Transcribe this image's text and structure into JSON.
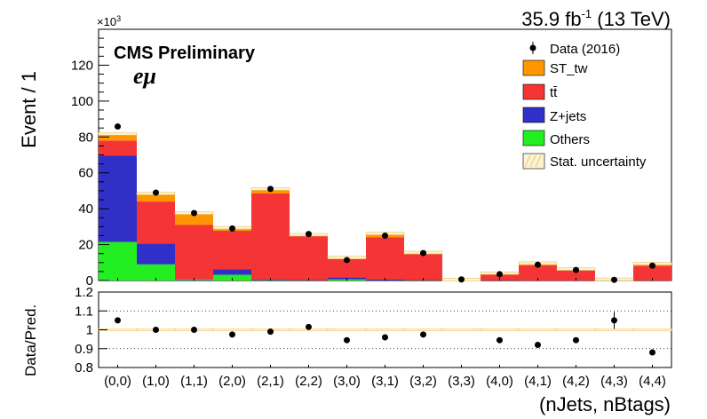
{
  "chart_data": {
    "type": "bar",
    "stacked": true,
    "header": {
      "lumi": "35.9 fb",
      "lumi_exp": "-1",
      "energy": " (13 TeV)",
      "experiment": "CMS Preliminary",
      "channel": "eμ"
    },
    "ylabel": "Event / 1",
    "xlabel": "(nJets, nBtags)",
    "y_multiplier": "×10",
    "y_multiplier_exp": "3",
    "ylim": [
      0,
      140
    ],
    "yticks": [
      0,
      20,
      40,
      60,
      80,
      100,
      120
    ],
    "categories": [
      "(0,0)",
      "(1,0)",
      "(1,1)",
      "(2,0)",
      "(2,1)",
      "(2,2)",
      "(3,0)",
      "(3,1)",
      "(3,2)",
      "(3,3)",
      "(4,0)",
      "(4,1)",
      "(4,2)",
      "(4,3)",
      "(4,4)"
    ],
    "series": [
      {
        "name": "Others",
        "color": "#22ee22",
        "values": [
          21.5,
          9,
          0.3,
          3.2,
          0.2,
          0.1,
          0.6,
          0.1,
          0.1,
          0,
          0,
          0,
          0,
          0,
          0
        ]
      },
      {
        "name": "Z+jets",
        "color": "#3030c8",
        "values": [
          48,
          11.5,
          0.3,
          3,
          0.3,
          0.1,
          1.2,
          0.4,
          0.1,
          0,
          0.1,
          0,
          0,
          0,
          0
        ]
      },
      {
        "name": "tt̄",
        "color": "#f53535",
        "values": [
          8.5,
          23.5,
          30.5,
          21.5,
          48,
          24.5,
          10.3,
          23.5,
          14.5,
          0.5,
          3.5,
          8.5,
          5.7,
          0.6,
          8.2
        ]
      },
      {
        "name": "ST_tw",
        "color": "#ff9600",
        "values": [
          3.8,
          4.5,
          6.5,
          1.7,
          2.5,
          0.8,
          0.7,
          2.2,
          0.9,
          0.1,
          0.5,
          1.2,
          0.7,
          0.1,
          1.2
        ]
      }
    ],
    "data": {
      "name": "Data (2016)",
      "values": [
        85.8,
        49,
        37.6,
        29,
        51,
        25.9,
        11.4,
        25,
        15.3,
        0.6,
        3.5,
        8.8,
        5.9,
        0.4,
        8.3
      ]
    },
    "uncertainty_name": "Stat. uncertainty",
    "legend_position": "top-right",
    "ratio": {
      "ylabel": "Data/Pred.",
      "ylim": [
        0.8,
        1.2
      ],
      "yticks": [
        0.8,
        0.9,
        1,
        1.1,
        1.2
      ],
      "values": [
        1.05,
        1.0,
        1.0,
        0.975,
        0.99,
        1.015,
        0.945,
        0.96,
        0.975,
        null,
        0.945,
        0.92,
        0.945,
        1.05,
        0.88
      ],
      "errors": [
        0,
        0,
        0,
        0,
        0,
        0,
        0,
        0,
        0,
        0,
        0,
        0,
        0,
        0.045,
        0
      ]
    }
  }
}
